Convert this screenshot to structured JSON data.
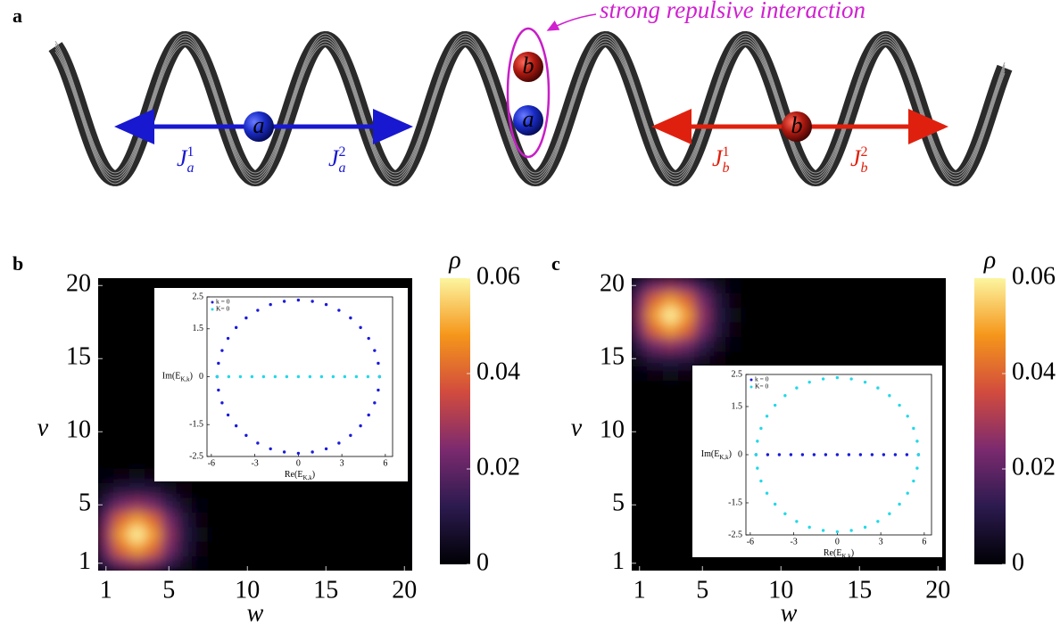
{
  "panel_a": {
    "label": "a",
    "annotation": "strong repulsive interaction",
    "particles": [
      "a",
      "b",
      "a",
      "b"
    ],
    "hoppings": [
      {
        "base": "J",
        "sub": "a",
        "sup": "1"
      },
      {
        "base": "J",
        "sub": "a",
        "sup": "2"
      },
      {
        "base": "J",
        "sub": "b",
        "sup": "1"
      },
      {
        "base": "J",
        "sub": "b",
        "sup": "2"
      }
    ]
  },
  "chart_data": [
    {
      "type": "heatmap",
      "panel_label": "b",
      "xlabel": "w",
      "ylabel": "v",
      "x": [
        1,
        2,
        3,
        4,
        5,
        6,
        7,
        8,
        9,
        10,
        11,
        12,
        13,
        14,
        15,
        16,
        17,
        18,
        19,
        20
      ],
      "y": [
        1,
        2,
        3,
        4,
        5,
        6,
        7,
        8,
        9,
        10,
        11,
        12,
        13,
        14,
        15,
        16,
        17,
        18,
        19,
        20
      ],
      "values": [
        [
          0.013,
          0.023,
          0.027,
          0.023,
          0.013,
          0.005,
          0.001,
          0,
          0,
          0,
          0,
          0,
          0,
          0,
          0,
          0,
          0,
          0,
          0,
          0
        ],
        [
          0.023,
          0.041,
          0.049,
          0.041,
          0.023,
          0.009,
          0.002,
          0,
          0,
          0,
          0,
          0,
          0,
          0,
          0,
          0,
          0,
          0,
          0,
          0
        ],
        [
          0.027,
          0.049,
          0.06,
          0.049,
          0.027,
          0.01,
          0.003,
          0,
          0,
          0,
          0,
          0,
          0,
          0,
          0,
          0,
          0,
          0,
          0,
          0
        ],
        [
          0.023,
          0.041,
          0.049,
          0.041,
          0.023,
          0.009,
          0.002,
          0,
          0,
          0,
          0,
          0,
          0,
          0,
          0,
          0,
          0,
          0,
          0,
          0
        ],
        [
          0.013,
          0.023,
          0.027,
          0.023,
          0.013,
          0.005,
          0.001,
          0,
          0,
          0,
          0,
          0,
          0,
          0,
          0,
          0,
          0,
          0,
          0,
          0
        ],
        [
          0.005,
          0.009,
          0.01,
          0.009,
          0.005,
          0.002,
          0,
          0,
          0,
          0,
          0,
          0,
          0,
          0,
          0,
          0,
          0,
          0,
          0,
          0
        ],
        [
          0.001,
          0.002,
          0.003,
          0.002,
          0.001,
          0,
          0,
          0,
          0,
          0,
          0,
          0,
          0,
          0,
          0,
          0,
          0,
          0,
          0,
          0
        ],
        [
          0,
          0,
          0,
          0,
          0,
          0,
          0,
          0,
          0,
          0,
          0,
          0,
          0,
          0,
          0,
          0,
          0,
          0,
          0,
          0
        ],
        [
          0,
          0,
          0,
          0,
          0,
          0,
          0,
          0,
          0,
          0,
          0,
          0,
          0,
          0,
          0,
          0,
          0,
          0,
          0,
          0
        ],
        [
          0,
          0,
          0,
          0,
          0,
          0,
          0,
          0,
          0,
          0,
          0,
          0,
          0,
          0,
          0,
          0,
          0,
          0,
          0,
          0
        ],
        [
          0,
          0,
          0,
          0,
          0,
          0,
          0,
          0,
          0,
          0,
          0,
          0,
          0,
          0,
          0,
          0,
          0,
          0,
          0,
          0
        ],
        [
          0,
          0,
          0,
          0,
          0,
          0,
          0,
          0,
          0,
          0,
          0,
          0,
          0,
          0,
          0,
          0,
          0,
          0,
          0,
          0
        ],
        [
          0,
          0,
          0,
          0,
          0,
          0,
          0,
          0,
          0,
          0,
          0,
          0,
          0,
          0,
          0,
          0,
          0,
          0,
          0,
          0
        ],
        [
          0,
          0,
          0,
          0,
          0,
          0,
          0,
          0,
          0,
          0,
          0,
          0,
          0,
          0,
          0,
          0,
          0,
          0,
          0,
          0
        ],
        [
          0,
          0,
          0,
          0,
          0,
          0,
          0,
          0,
          0,
          0,
          0,
          0,
          0,
          0,
          0,
          0,
          0,
          0,
          0,
          0
        ],
        [
          0,
          0,
          0,
          0,
          0,
          0,
          0,
          0,
          0,
          0,
          0,
          0,
          0,
          0,
          0,
          0,
          0,
          0,
          0,
          0
        ],
        [
          0,
          0,
          0,
          0,
          0,
          0,
          0,
          0,
          0,
          0,
          0,
          0,
          0,
          0,
          0,
          0,
          0,
          0,
          0,
          0
        ],
        [
          0,
          0,
          0,
          0,
          0,
          0,
          0,
          0,
          0,
          0,
          0,
          0,
          0,
          0,
          0,
          0,
          0,
          0,
          0,
          0
        ],
        [
          0,
          0,
          0,
          0,
          0,
          0,
          0,
          0,
          0,
          0,
          0,
          0,
          0,
          0,
          0,
          0,
          0,
          0,
          0,
          0
        ],
        [
          0,
          0,
          0,
          0,
          0,
          0,
          0,
          0,
          0,
          0,
          0,
          0,
          0,
          0,
          0,
          0,
          0,
          0,
          0,
          0
        ]
      ],
      "xlim": [
        0.5,
        20.5
      ],
      "ylim": [
        0.5,
        20.5
      ],
      "xticks": [
        1,
        5,
        10,
        15,
        20
      ],
      "yticks": [
        1,
        5,
        10,
        15,
        20
      ],
      "colorbar": {
        "label": "ρ",
        "lim": [
          0,
          0.06
        ],
        "ticks": [
          0,
          0.02,
          0.04,
          0.06
        ]
      },
      "colormap": [
        "#000004",
        "#2b1a4e",
        "#7b2a6f",
        "#d14b3e",
        "#f5961a",
        "#fcf5a0"
      ]
    },
    {
      "type": "scatter",
      "xlabel": [
        "Re(E",
        "K,k",
        ")"
      ],
      "ylabel": [
        "Im(E",
        "K,k",
        ")"
      ],
      "xlim": [
        -6.3,
        6.5
      ],
      "ylim": [
        -2.5,
        2.5
      ],
      "xticks": [
        -6,
        -3,
        0,
        3,
        6
      ],
      "yticks": [
        -2.5,
        -1.5,
        0,
        1.5,
        2.5
      ],
      "series": [
        {
          "name": "k = 0",
          "color": "#1a1adc",
          "x": [
            5.6,
            5.51,
            5.26,
            4.85,
            4.29,
            3.6,
            2.8,
            1.92,
            0.97,
            0,
            -0.97,
            -1.92,
            -2.8,
            -3.6,
            -4.29,
            -4.85,
            -5.26,
            -5.51,
            -5.6,
            -5.51,
            -5.26,
            -4.85,
            -4.29,
            -3.6,
            -2.8,
            -1.92,
            -0.97,
            0,
            0.97,
            1.92,
            2.8,
            3.6,
            4.29,
            4.85,
            5.26,
            5.51
          ],
          "values": [
            0,
            0.42,
            0.82,
            1.2,
            1.54,
            1.84,
            2.08,
            2.26,
            2.36,
            2.4,
            2.36,
            2.26,
            2.08,
            1.84,
            1.54,
            1.2,
            0.82,
            0.42,
            0,
            -0.42,
            -0.82,
            -1.2,
            -1.54,
            -1.84,
            -2.08,
            -2.26,
            -2.36,
            -2.4,
            -2.36,
            -2.26,
            -2.08,
            -1.84,
            -1.54,
            -1.2,
            -0.82,
            -0.42
          ]
        },
        {
          "name": "K= 0",
          "color": "#22d8e8",
          "x": [
            -5.6,
            -4.8,
            -4,
            -3.2,
            -2.4,
            -1.6,
            -0.8,
            0,
            0.8,
            1.6,
            2.4,
            3.2,
            4,
            4.8,
            5.6
          ],
          "values": [
            0,
            0,
            0,
            0,
            0,
            0,
            0,
            0,
            0,
            0,
            0,
            0,
            0,
            0,
            0
          ]
        }
      ]
    },
    {
      "type": "heatmap",
      "panel_label": "c",
      "xlabel": "w",
      "ylabel": "v",
      "x": [
        1,
        2,
        3,
        4,
        5,
        6,
        7,
        8,
        9,
        10,
        11,
        12,
        13,
        14,
        15,
        16,
        17,
        18,
        19,
        20
      ],
      "y": [
        1,
        2,
        3,
        4,
        5,
        6,
        7,
        8,
        9,
        10,
        11,
        12,
        13,
        14,
        15,
        16,
        17,
        18,
        19,
        20
      ],
      "values": [
        [
          0,
          0,
          0,
          0,
          0,
          0,
          0,
          0,
          0,
          0,
          0,
          0,
          0,
          0,
          0,
          0,
          0,
          0,
          0,
          0
        ],
        [
          0,
          0,
          0,
          0,
          0,
          0,
          0,
          0,
          0,
          0,
          0,
          0,
          0,
          0,
          0,
          0,
          0,
          0,
          0,
          0
        ],
        [
          0,
          0,
          0,
          0,
          0,
          0,
          0,
          0,
          0,
          0,
          0,
          0,
          0,
          0,
          0,
          0,
          0,
          0,
          0,
          0
        ],
        [
          0,
          0,
          0,
          0,
          0,
          0,
          0,
          0,
          0,
          0,
          0,
          0,
          0,
          0,
          0,
          0,
          0,
          0,
          0,
          0
        ],
        [
          0,
          0,
          0,
          0,
          0,
          0,
          0,
          0,
          0,
          0,
          0,
          0,
          0,
          0,
          0,
          0,
          0,
          0,
          0,
          0
        ],
        [
          0,
          0,
          0,
          0,
          0,
          0,
          0,
          0,
          0,
          0,
          0,
          0,
          0,
          0,
          0,
          0,
          0,
          0,
          0,
          0
        ],
        [
          0,
          0,
          0,
          0,
          0,
          0,
          0,
          0,
          0,
          0,
          0,
          0,
          0,
          0,
          0,
          0,
          0,
          0,
          0,
          0
        ],
        [
          0,
          0,
          0,
          0,
          0,
          0,
          0,
          0,
          0,
          0,
          0,
          0,
          0,
          0,
          0,
          0,
          0,
          0,
          0,
          0
        ],
        [
          0,
          0,
          0,
          0,
          0,
          0,
          0,
          0,
          0,
          0,
          0,
          0,
          0,
          0,
          0,
          0,
          0,
          0,
          0,
          0
        ],
        [
          0,
          0,
          0,
          0,
          0,
          0,
          0,
          0,
          0,
          0,
          0,
          0,
          0,
          0,
          0,
          0,
          0,
          0,
          0,
          0
        ],
        [
          0,
          0,
          0,
          0,
          0,
          0,
          0,
          0,
          0,
          0,
          0,
          0,
          0,
          0,
          0,
          0,
          0,
          0,
          0,
          0
        ],
        [
          0,
          0,
          0,
          0,
          0,
          0,
          0,
          0,
          0,
          0,
          0,
          0,
          0,
          0,
          0,
          0,
          0,
          0,
          0,
          0
        ],
        [
          0,
          0,
          0,
          0,
          0,
          0,
          0,
          0,
          0,
          0,
          0,
          0,
          0,
          0,
          0,
          0,
          0,
          0,
          0,
          0
        ],
        [
          0.001,
          0.002,
          0.003,
          0.002,
          0.001,
          0,
          0,
          0,
          0,
          0,
          0,
          0,
          0,
          0,
          0,
          0,
          0,
          0,
          0,
          0
        ],
        [
          0.005,
          0.009,
          0.01,
          0.009,
          0.005,
          0.002,
          0,
          0,
          0,
          0,
          0,
          0,
          0,
          0,
          0,
          0,
          0,
          0,
          0,
          0
        ],
        [
          0.013,
          0.023,
          0.027,
          0.023,
          0.013,
          0.005,
          0.001,
          0,
          0,
          0,
          0,
          0,
          0,
          0,
          0,
          0,
          0,
          0,
          0,
          0
        ],
        [
          0.023,
          0.041,
          0.049,
          0.041,
          0.023,
          0.009,
          0.002,
          0,
          0,
          0,
          0,
          0,
          0,
          0,
          0,
          0,
          0,
          0,
          0,
          0
        ],
        [
          0.027,
          0.049,
          0.06,
          0.049,
          0.027,
          0.01,
          0.003,
          0,
          0,
          0,
          0,
          0,
          0,
          0,
          0,
          0,
          0,
          0,
          0,
          0
        ],
        [
          0.023,
          0.041,
          0.049,
          0.041,
          0.023,
          0.009,
          0.002,
          0,
          0,
          0,
          0,
          0,
          0,
          0,
          0,
          0,
          0,
          0,
          0,
          0
        ],
        [
          0.013,
          0.023,
          0.027,
          0.023,
          0.013,
          0.005,
          0.001,
          0,
          0,
          0,
          0,
          0,
          0,
          0,
          0,
          0,
          0,
          0,
          0,
          0
        ]
      ],
      "xlim": [
        0.5,
        20.5
      ],
      "ylim": [
        0.5,
        20.5
      ],
      "xticks": [
        1,
        5,
        10,
        15,
        20
      ],
      "yticks": [
        1,
        5,
        10,
        15,
        20
      ],
      "colorbar": {
        "label": "ρ",
        "lim": [
          0,
          0.06
        ],
        "ticks": [
          0,
          0.02,
          0.04,
          0.06
        ]
      },
      "colormap": [
        "#000004",
        "#2b1a4e",
        "#7b2a6f",
        "#d14b3e",
        "#f5961a",
        "#fcf5a0"
      ]
    },
    {
      "type": "scatter",
      "xlabel": [
        "Re(E",
        "K,k",
        ")"
      ],
      "ylabel": [
        "Im(E",
        "K,k",
        ")"
      ],
      "xlim": [
        -6.3,
        6.5
      ],
      "ylim": [
        -2.5,
        2.5
      ],
      "xticks": [
        -6,
        -3,
        0,
        3,
        6
      ],
      "yticks": [
        -2.5,
        -1.5,
        0,
        1.5,
        2.5
      ],
      "series": [
        {
          "name": "k = 0",
          "color": "#1a1adc",
          "x": [
            -5.6,
            -4.8,
            -4,
            -3.2,
            -2.4,
            -1.6,
            -0.8,
            0,
            0.8,
            1.6,
            2.4,
            3.2,
            4,
            4.8,
            5.6
          ],
          "values": [
            0,
            0,
            0,
            0,
            0,
            0,
            0,
            0,
            0,
            0,
            0,
            0,
            0,
            0,
            0
          ]
        },
        {
          "name": "K= 0",
          "color": "#22d8e8",
          "x": [
            5.6,
            5.51,
            5.26,
            4.85,
            4.29,
            3.6,
            2.8,
            1.92,
            0.97,
            0,
            -0.97,
            -1.92,
            -2.8,
            -3.6,
            -4.29,
            -4.85,
            -5.26,
            -5.51,
            -5.6,
            -5.51,
            -5.26,
            -4.85,
            -4.29,
            -3.6,
            -2.8,
            -1.92,
            -0.97,
            0,
            0.97,
            1.92,
            2.8,
            3.6,
            4.29,
            4.85,
            5.26,
            5.51
          ],
          "values": [
            0,
            0.42,
            0.82,
            1.2,
            1.54,
            1.84,
            2.08,
            2.26,
            2.36,
            2.4,
            2.36,
            2.26,
            2.08,
            1.84,
            1.54,
            1.2,
            0.82,
            0.42,
            0,
            -0.42,
            -0.82,
            -1.2,
            -1.54,
            -1.84,
            -2.08,
            -2.26,
            -2.36,
            -2.4,
            -2.36,
            -2.26,
            -2.08,
            -1.84,
            -1.54,
            -1.2,
            -0.82,
            -0.42
          ]
        }
      ]
    }
  ]
}
